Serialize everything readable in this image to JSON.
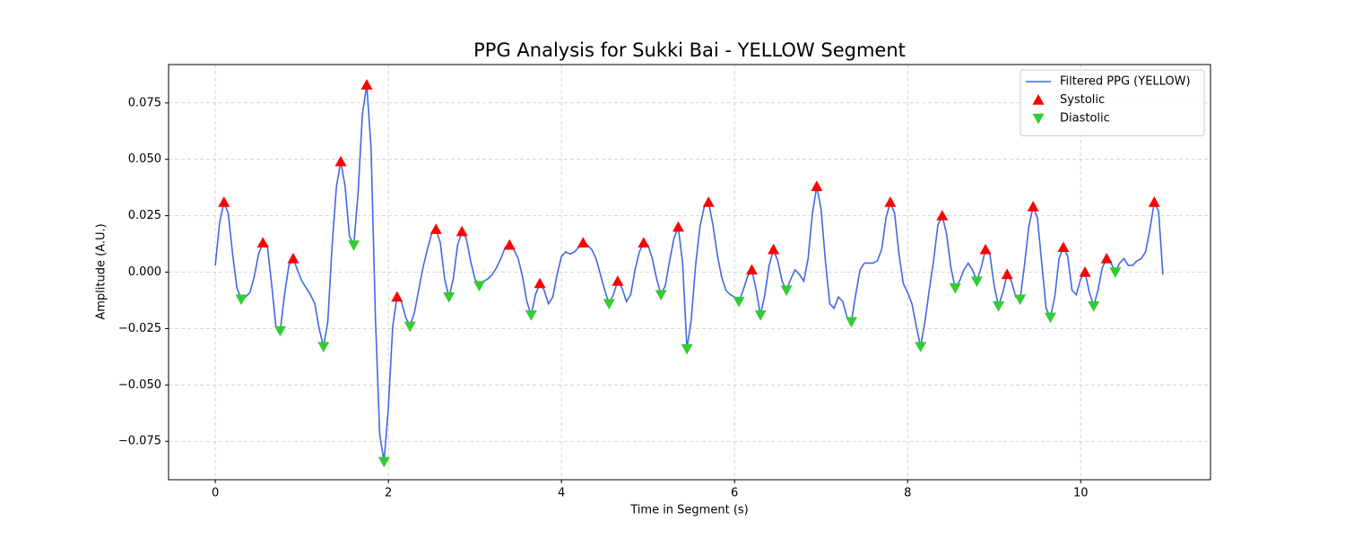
{
  "chart_data": {
    "type": "line",
    "title": "PPG Analysis for Sukki Bai - YELLOW Segment",
    "xlabel": "Time in Segment (s)",
    "ylabel": "Amplitude (A.U.)",
    "xlim": [
      -0.54,
      11.5
    ],
    "ylim": [
      -0.092,
      0.092
    ],
    "xticks": [
      0,
      2,
      4,
      6,
      8,
      10
    ],
    "yticks": [
      {
        "value": -0.075,
        "label": "−0.075"
      },
      {
        "value": -0.05,
        "label": "−0.050"
      },
      {
        "value": -0.025,
        "label": "−0.025"
      },
      {
        "value": 0,
        "label": "0.000"
      },
      {
        "value": 0.025,
        "label": "0.025"
      },
      {
        "value": 0.05,
        "label": "0.050"
      },
      {
        "value": 0.075,
        "label": "0.075"
      }
    ],
    "grid": true,
    "legend": "upper right",
    "series": [
      {
        "name": "Filtered PPG (YELLOW)",
        "type": "line",
        "color": "#4169e1",
        "x": [
          0,
          0.05,
          0.1,
          0.15,
          0.2,
          0.25,
          0.3,
          0.35,
          0.4,
          0.45,
          0.5,
          0.55,
          0.6,
          0.65,
          0.7,
          0.75,
          0.8,
          0.85,
          0.9,
          0.95,
          1,
          1.05,
          1.1,
          1.15,
          1.2,
          1.25,
          1.3,
          1.35,
          1.4,
          1.45,
          1.5,
          1.55,
          1.6,
          1.65,
          1.7,
          1.75,
          1.8,
          1.85,
          1.9,
          1.95,
          2,
          2.05,
          2.1,
          2.15,
          2.2,
          2.25,
          2.3,
          2.35,
          2.4,
          2.45,
          2.5,
          2.55,
          2.6,
          2.65,
          2.7,
          2.75,
          2.8,
          2.85,
          2.9,
          2.95,
          3,
          3.05,
          3.1,
          3.15,
          3.2,
          3.25,
          3.3,
          3.35,
          3.4,
          3.45,
          3.5,
          3.55,
          3.6,
          3.65,
          3.7,
          3.75,
          3.8,
          3.85,
          3.9,
          3.95,
          4,
          4.05,
          4.1,
          4.15,
          4.2,
          4.25,
          4.3,
          4.35,
          4.4,
          4.45,
          4.5,
          4.55,
          4.6,
          4.65,
          4.7,
          4.75,
          4.8,
          4.85,
          4.9,
          4.95,
          5,
          5.05,
          5.1,
          5.15,
          5.2,
          5.25,
          5.3,
          5.35,
          5.4,
          5.45,
          5.5,
          5.55,
          5.6,
          5.65,
          5.7,
          5.75,
          5.8,
          5.85,
          5.9,
          5.95,
          6,
          6.05,
          6.1,
          6.15,
          6.2,
          6.25,
          6.3,
          6.35,
          6.4,
          6.45,
          6.5,
          6.55,
          6.6,
          6.65,
          6.7,
          6.75,
          6.8,
          6.85,
          6.9,
          6.95,
          7,
          7.05,
          7.1,
          7.15,
          7.2,
          7.25,
          7.3,
          7.35,
          7.4,
          7.45,
          7.5,
          7.55,
          7.6,
          7.65,
          7.7,
          7.75,
          7.8,
          7.85,
          7.9,
          7.95,
          8,
          8.05,
          8.1,
          8.15,
          8.2,
          8.25,
          8.3,
          8.35,
          8.4,
          8.45,
          8.5,
          8.55,
          8.6,
          8.65,
          8.7,
          8.75,
          8.8,
          8.85,
          8.9,
          8.95,
          9,
          9.05,
          9.1,
          9.15,
          9.2,
          9.25,
          9.3,
          9.35,
          9.4,
          9.45,
          9.5,
          9.55,
          9.6,
          9.65,
          9.7,
          9.75,
          9.8,
          9.85,
          9.9,
          9.95,
          10,
          10.05,
          10.1,
          10.15,
          10.2,
          10.25,
          10.3,
          10.35,
          10.4,
          10.45,
          10.5,
          10.55,
          10.6,
          10.65,
          10.7,
          10.75,
          10.8,
          10.85,
          10.9,
          10.95
        ],
        "values": [
          0.003,
          0.022,
          0.031,
          0.026,
          0.008,
          -0.007,
          -0.012,
          -0.011,
          -0.009,
          -0.002,
          0.008,
          0.013,
          0.012,
          -0.005,
          -0.024,
          -0.026,
          -0.01,
          0.003,
          0.006,
          0.001,
          -0.004,
          -0.007,
          -0.01,
          -0.014,
          -0.025,
          -0.033,
          -0.022,
          0.012,
          0.038,
          0.049,
          0.038,
          0.016,
          0.012,
          0.035,
          0.07,
          0.083,
          0.055,
          -0.02,
          -0.072,
          -0.084,
          -0.06,
          -0.024,
          -0.011,
          -0.013,
          -0.02,
          -0.024,
          -0.018,
          -0.008,
          0.002,
          0.01,
          0.017,
          0.019,
          0.013,
          -0.003,
          -0.011,
          -0.003,
          0.012,
          0.018,
          0.015,
          0.005,
          -0.003,
          -0.006,
          -0.004,
          -0.003,
          -0.001,
          0.002,
          0.006,
          0.011,
          0.012,
          0.01,
          0.006,
          -0.002,
          -0.013,
          -0.019,
          -0.01,
          -0.005,
          -0.008,
          -0.014,
          -0.011,
          -0.001,
          0.007,
          0.009,
          0.008,
          0.009,
          0.011,
          0.013,
          0.012,
          0.01,
          0.006,
          -0.001,
          -0.008,
          -0.014,
          -0.01,
          -0.004,
          -0.007,
          -0.013,
          -0.01,
          0.001,
          0.009,
          0.013,
          0.012,
          0.006,
          -0.003,
          -0.01,
          -0.006,
          0.005,
          0.015,
          0.02,
          0.004,
          -0.034,
          -0.021,
          0.003,
          0.02,
          0.029,
          0.031,
          0.021,
          0.008,
          -0.002,
          -0.008,
          -0.01,
          -0.011,
          -0.013,
          -0.008,
          -0.002,
          0.001,
          -0.008,
          -0.019,
          -0.01,
          0.003,
          0.01,
          0.005,
          -0.004,
          -0.008,
          -0.003,
          0.001,
          -0.001,
          -0.004,
          0.006,
          0.026,
          0.038,
          0.028,
          0.005,
          -0.014,
          -0.016,
          -0.011,
          -0.013,
          -0.02,
          -0.022,
          -0.01,
          0.001,
          0.004,
          0.004,
          0.004,
          0.005,
          0.01,
          0.024,
          0.031,
          0.026,
          0.008,
          -0.005,
          -0.009,
          -0.014,
          -0.024,
          -0.033,
          -0.022,
          -0.008,
          0.005,
          0.021,
          0.025,
          0.017,
          0.002,
          -0.007,
          -0.004,
          0.001,
          0.004,
          0.001,
          -0.004,
          0.002,
          0.01,
          0.008,
          -0.006,
          -0.015,
          -0.009,
          -0.001,
          -0.004,
          -0.011,
          -0.012,
          0.003,
          0.02,
          0.029,
          0.024,
          0.004,
          -0.016,
          -0.02,
          -0.011,
          0.006,
          0.011,
          0.007,
          -0.008,
          -0.01,
          -0.003,
          0.0,
          -0.009,
          -0.015,
          -0.008,
          0.002,
          0.006,
          0.004,
          0.0,
          0.004,
          0.006,
          0.003,
          0.003,
          0.005,
          0.006,
          0.009,
          0.019,
          0.031,
          0.027,
          -0.001
        ]
      },
      {
        "name": "Systolic",
        "type": "scatter",
        "marker": "up",
        "color": "#ff0000",
        "x": [
          0.1,
          0.55,
          0.9,
          1.45,
          1.75,
          2.1,
          2.55,
          2.85,
          3.4,
          3.75,
          4.25,
          4.65,
          4.95,
          5.35,
          5.7,
          6.2,
          6.45,
          6.95,
          7.8,
          8.4,
          8.9,
          9.15,
          9.45,
          9.8,
          10.05,
          10.3,
          10.85
        ],
        "values": [
          0.031,
          0.013,
          0.006,
          0.049,
          0.083,
          -0.011,
          0.019,
          0.018,
          0.012,
          -0.005,
          0.013,
          -0.004,
          0.013,
          0.02,
          0.031,
          0.001,
          0.01,
          0.038,
          0.031,
          0.025,
          0.01,
          -0.001,
          0.029,
          0.011,
          0.0,
          0.006,
          0.031
        ]
      },
      {
        "name": "Diastolic",
        "type": "scatter",
        "marker": "down",
        "color": "#32cd32",
        "x": [
          0.3,
          0.75,
          1.25,
          1.6,
          1.95,
          2.25,
          2.7,
          3.05,
          3.65,
          4.55,
          5.15,
          5.45,
          6.05,
          6.3,
          6.6,
          7.35,
          8.15,
          8.55,
          8.8,
          9.05,
          9.3,
          9.65,
          10.15,
          10.4
        ],
        "values": [
          -0.012,
          -0.026,
          -0.033,
          0.012,
          -0.084,
          -0.024,
          -0.011,
          -0.006,
          -0.019,
          -0.014,
          -0.01,
          -0.034,
          -0.013,
          -0.019,
          -0.008,
          -0.022,
          -0.033,
          -0.007,
          -0.004,
          -0.015,
          -0.012,
          -0.02,
          -0.015,
          0.0
        ]
      }
    ]
  }
}
